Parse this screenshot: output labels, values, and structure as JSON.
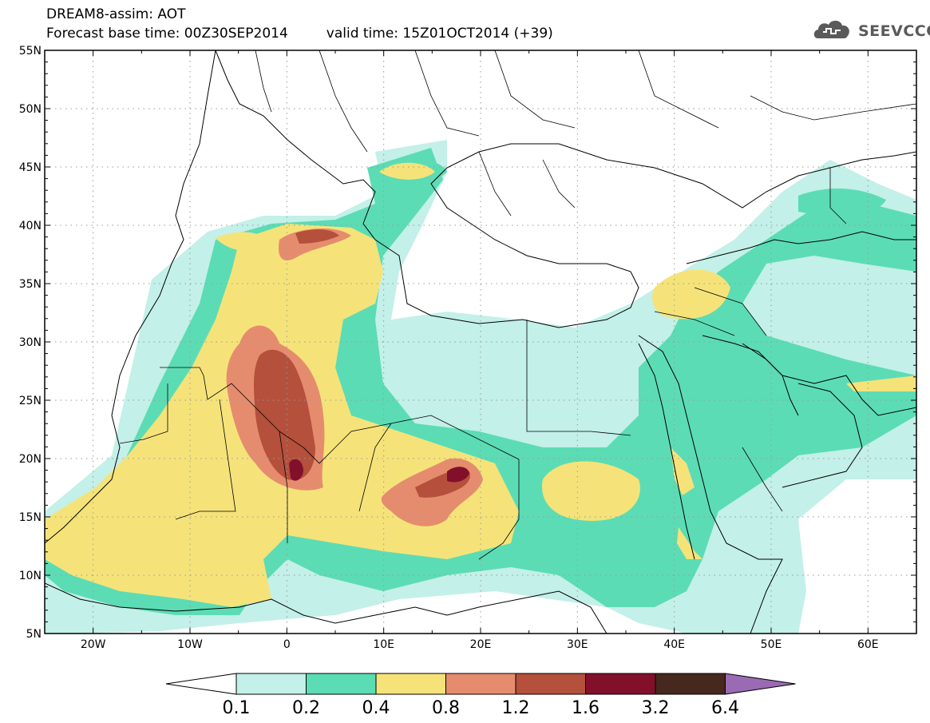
{
  "header": {
    "line1": "DREAM8-assim: AOT",
    "base_time": "Forecast base time: 00Z30SEP2014",
    "valid_time": "valid time: 15Z01OCT2014 (+39)"
  },
  "logo": {
    "text": "SEEVCCC",
    "icon": "cloud-icon"
  },
  "map": {
    "lon_range": [
      -25,
      65
    ],
    "lat_range": [
      5,
      55
    ],
    "lat_ticks": [
      {
        "value": 55,
        "label": "55N"
      },
      {
        "value": 50,
        "label": "50N"
      },
      {
        "value": 45,
        "label": "45N"
      },
      {
        "value": 40,
        "label": "40N"
      },
      {
        "value": 35,
        "label": "35N"
      },
      {
        "value": 30,
        "label": "30N"
      },
      {
        "value": 25,
        "label": "25N"
      },
      {
        "value": 20,
        "label": "20N"
      },
      {
        "value": 15,
        "label": "15N"
      },
      {
        "value": 10,
        "label": "10N"
      },
      {
        "value": 5,
        "label": "5N"
      }
    ],
    "lon_ticks": [
      {
        "value": -20,
        "label": "20W"
      },
      {
        "value": -10,
        "label": "10W"
      },
      {
        "value": 0,
        "label": "0"
      },
      {
        "value": 10,
        "label": "10E"
      },
      {
        "value": 20,
        "label": "20E"
      },
      {
        "value": 30,
        "label": "30E"
      },
      {
        "value": 40,
        "label": "40E"
      },
      {
        "value": 50,
        "label": "50E"
      },
      {
        "value": 60,
        "label": "60E"
      }
    ],
    "grid": true
  },
  "colorbar": {
    "levels": [
      "0.1",
      "0.2",
      "0.4",
      "0.8",
      "1.2",
      "1.6",
      "3.2",
      "6.4"
    ],
    "colors": [
      "#ffffff",
      "#c3f0e8",
      "#5cdcb4",
      "#f5e37a",
      "#e68c6e",
      "#b4503c",
      "#82102a",
      "#46281e",
      "#9a6ab4"
    ]
  }
}
